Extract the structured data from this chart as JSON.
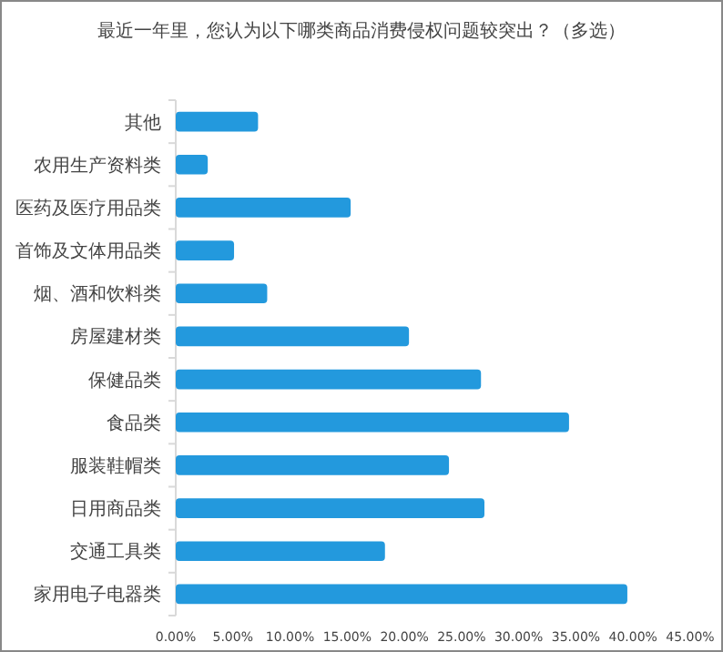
{
  "chart_data": {
    "type": "bar",
    "orientation": "horizontal",
    "title": "最近一年里，您认为以下哪类商品消费侵权问题较突出？（多选）",
    "categories": [
      "其他",
      "农用生产资料类",
      "医药及医疗用品类",
      "首饰及文体用品类",
      "烟、酒和饮料类",
      "房屋建材类",
      "保健品类",
      "食品类",
      "服装鞋帽类",
      "日用商品类",
      "交通工具类",
      "家用电子电器类"
    ],
    "values": [
      7.2,
      2.8,
      15.3,
      5.1,
      8.0,
      20.4,
      26.7,
      34.4,
      23.9,
      27.0,
      18.3,
      39.5
    ],
    "color": "#2399dd",
    "xlim": [
      0,
      45
    ],
    "xticks": [
      {
        "value": 0,
        "label": "0.00%"
      },
      {
        "value": 5,
        "label": "5.00%"
      },
      {
        "value": 10,
        "label": "10.00%"
      },
      {
        "value": 15,
        "label": "15.00%"
      },
      {
        "value": 20,
        "label": "20.00%"
      },
      {
        "value": 25,
        "label": "25.00%"
      },
      {
        "value": 30,
        "label": "30.00%"
      },
      {
        "value": 35,
        "label": "35.00%"
      },
      {
        "value": 40,
        "label": "40.00%"
      },
      {
        "value": 45,
        "label": "45.00%"
      }
    ],
    "grid": false
  }
}
